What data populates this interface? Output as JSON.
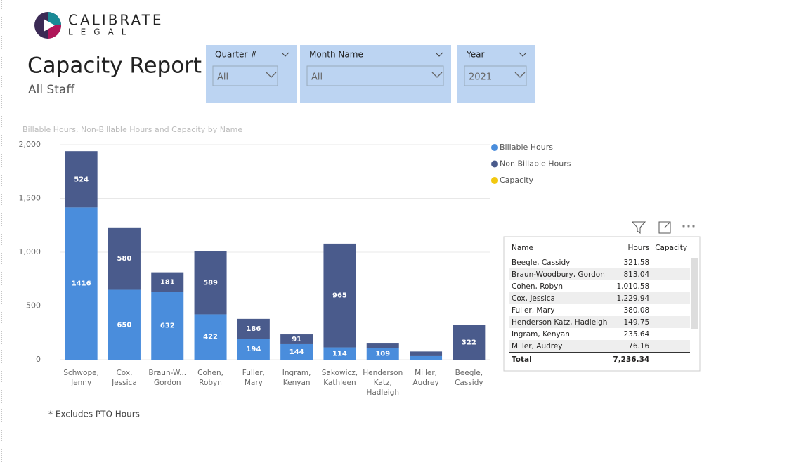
{
  "logo": {
    "name": "CALIBRATE",
    "sub": "LEGAL"
  },
  "header": {
    "title": "Capacity Report",
    "subtitle": "All Staff"
  },
  "filters": [
    {
      "label": "Quarter #",
      "value": "All"
    },
    {
      "label": "Month Name",
      "value": "All"
    },
    {
      "label": "Year",
      "value": "2021"
    }
  ],
  "chart_data": {
    "type": "stacked-bar",
    "title": "Billable Hours, Non-Billable Hours and Capacity by Name",
    "categories": [
      "Schwope, Jenny",
      "Cox, Jessica",
      "Braun-W... Gordon",
      "Cohen, Robyn",
      "Fuller, Mary",
      "Ingram, Kenyan",
      "Sakowicz, Kathleen",
      "Henderson Katz, Hadleigh",
      "Miller, Audrey",
      "Beegle, Cassidy"
    ],
    "series": [
      {
        "name": "Billable Hours",
        "color": "#4a8ddc",
        "values": [
          1416,
          650,
          632,
          422,
          194,
          144,
          114,
          109,
          33,
          null
        ]
      },
      {
        "name": "Non-Billable Hours",
        "color": "#4a5b8c",
        "values": [
          524,
          580,
          181,
          589,
          186,
          91,
          965,
          41,
          43,
          322
        ]
      },
      {
        "name": "Capacity",
        "color": "#f2c80f",
        "values": [
          null,
          null,
          null,
          null,
          null,
          null,
          null,
          null,
          null,
          null
        ]
      }
    ],
    "ylim": [
      0,
      2000
    ],
    "yticks": [
      0,
      {
        "value": 500,
        "label": "500"
      },
      {
        "value": 1000,
        "label": "1,000"
      },
      {
        "value": 1500,
        "label": "1,500"
      },
      {
        "value": 2000,
        "label": "2,000"
      }
    ],
    "grid": true,
    "legend": "top-right"
  },
  "note": "* Excludes PTO Hours",
  "table": {
    "columns": [
      "Name",
      "Hours",
      "Capacity"
    ],
    "rows": [
      [
        "Beegle, Cassidy",
        "321.58"
      ],
      [
        "Braun-Woodbury, Gordon",
        "813.04"
      ],
      [
        "Cohen, Robyn",
        "1,010.58"
      ],
      [
        "Cox, Jessica",
        "1,229.94"
      ],
      [
        "Fuller, Mary",
        "380.08"
      ],
      [
        "Henderson Katz, Hadleigh",
        "149.75"
      ],
      [
        "Ingram, Kenyan",
        "235.64"
      ],
      [
        "Miller, Audrey",
        "76.16"
      ]
    ],
    "total": [
      "Total",
      "7,236.34"
    ]
  }
}
